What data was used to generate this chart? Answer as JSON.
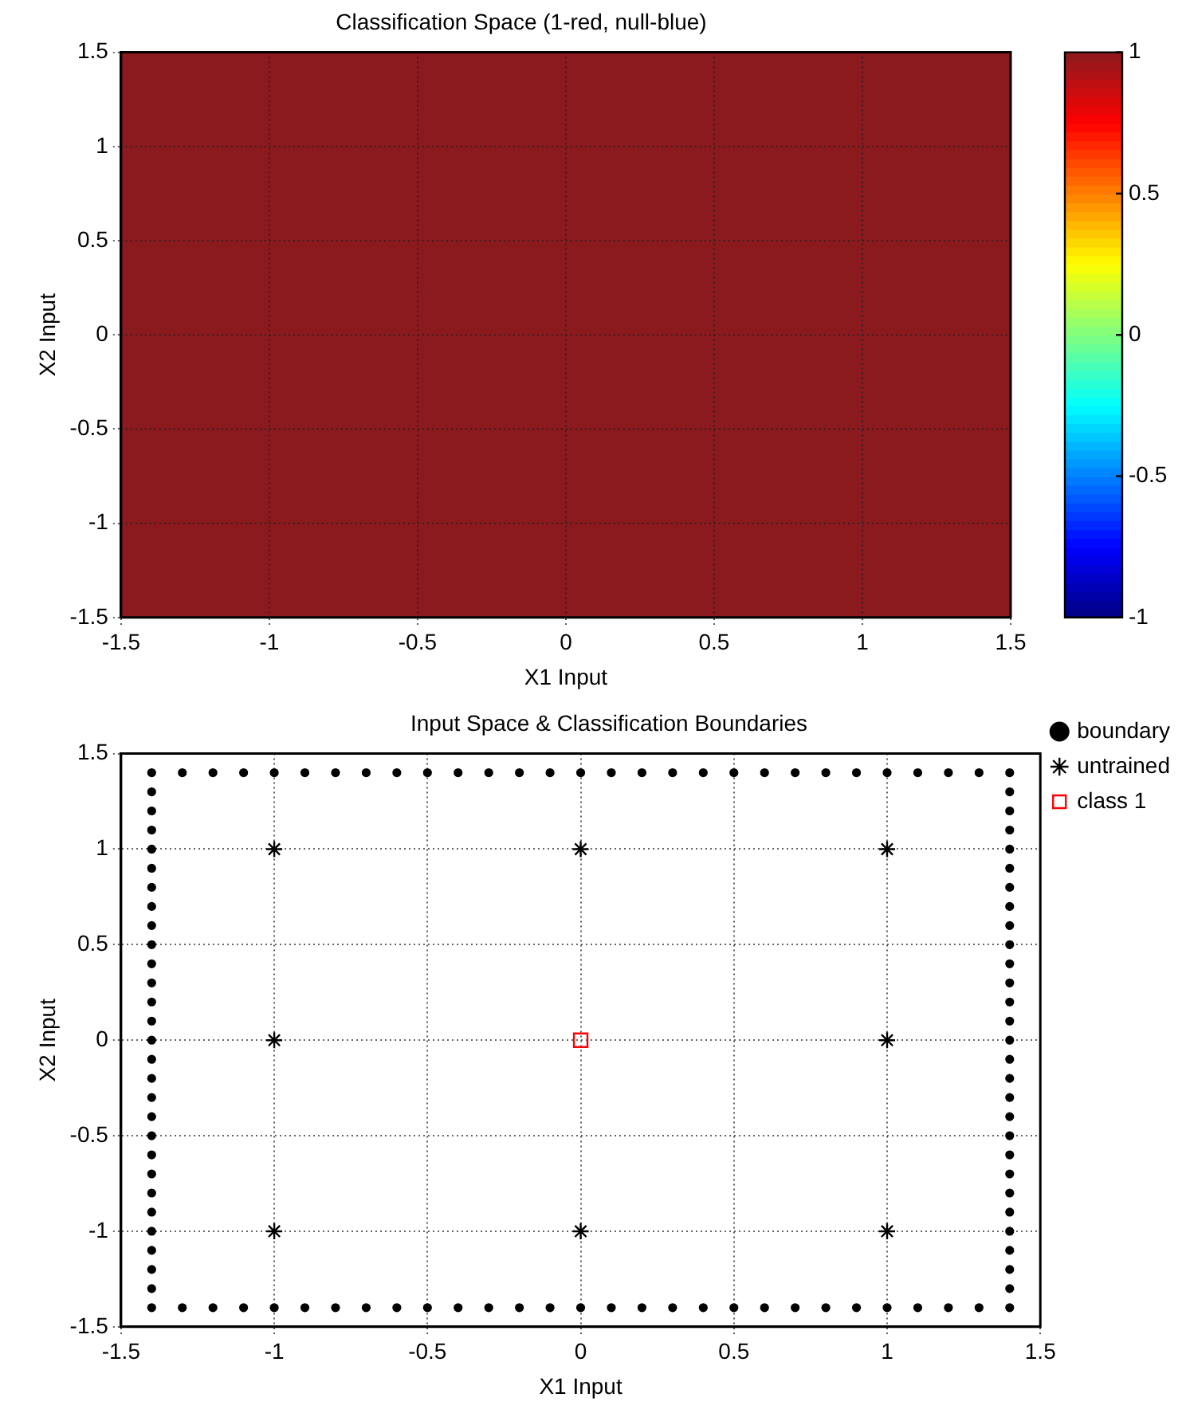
{
  "chart_data": [
    {
      "type": "heatmap",
      "title": "Classification Space (1-red, null-blue)",
      "xlabel": "X1 Input",
      "ylabel": "X2 Input",
      "cells": [
        [
          1
        ]
      ],
      "clim": [
        -1,
        1
      ],
      "cticks": [
        -1,
        -0.5,
        0,
        0.5,
        1
      ],
      "xlim": [
        -1.5,
        1.5
      ],
      "ylim": [
        -1.5,
        1.5
      ],
      "xticks": [
        -1.5,
        -1,
        -0.5,
        0,
        0.5,
        1,
        1.5
      ],
      "yticks": [
        -1.5,
        -1,
        -0.5,
        0,
        0.5,
        1,
        1.5
      ],
      "grid": true
    },
    {
      "type": "scatter",
      "title": "Input Space & Classification Boundaries",
      "xlabel": "X1 Input",
      "ylabel": "X2 Input",
      "xlim": [
        -1.5,
        1.5
      ],
      "ylim": [
        -1.5,
        1.5
      ],
      "xticks": [
        -1.5,
        -1,
        -0.5,
        0,
        0.5,
        1,
        1.5
      ],
      "yticks": [
        -1.5,
        -1,
        -0.5,
        0,
        0.5,
        1,
        1.5
      ],
      "grid": true,
      "legend": "right",
      "series": [
        {
          "name": "boundary",
          "color": "#000000",
          "marker": "circle",
          "x": [
            -1.4,
            -1.3,
            -1.2,
            -1.1,
            -1,
            -0.9,
            -0.8,
            -0.7,
            -0.6,
            -0.5,
            -0.4,
            -0.3,
            -0.2,
            -0.1,
            0,
            0.1,
            0.2,
            0.3,
            0.4,
            0.5,
            0.6,
            0.7,
            0.8,
            0.9,
            1,
            1.1,
            1.2,
            1.3,
            1.4,
            1.4,
            1.4,
            1.4,
            1.4,
            1.4,
            1.4,
            1.4,
            1.4,
            1.4,
            1.4,
            1.4,
            1.4,
            1.4,
            1.4,
            1.4,
            1.4,
            1.4,
            1.4,
            1.4,
            1.4,
            1.4,
            1.4,
            1.4,
            1.4,
            1.4,
            1.4,
            1.4,
            1.4,
            1.3,
            1.2,
            1.1,
            1,
            0.9,
            0.8,
            0.7,
            0.6,
            0.5,
            0.4,
            0.3,
            0.2,
            0.1,
            0,
            -0.1,
            -0.2,
            -0.3,
            -0.4,
            -0.5,
            -0.6,
            -0.7,
            -0.8,
            -0.9,
            -1,
            -1.1,
            -1.2,
            -1.3,
            -1.4,
            -1.4,
            -1.4,
            -1.4,
            -1.4,
            -1.4,
            -1.4,
            -1.4,
            -1.4,
            -1.4,
            -1.4,
            -1.4,
            -1.4,
            -1.4,
            -1.4,
            -1.4,
            -1.4,
            -1.4,
            -1.4,
            -1.4,
            -1.4,
            -1.4,
            -1.4,
            -1.4,
            -1.4,
            -1.4,
            -1.4,
            -1.4
          ],
          "values": [
            -1.4,
            -1.4,
            -1.4,
            -1.4,
            -1.4,
            -1.4,
            -1.4,
            -1.4,
            -1.4,
            -1.4,
            -1.4,
            -1.4,
            -1.4,
            -1.4,
            -1.4,
            -1.4,
            -1.4,
            -1.4,
            -1.4,
            -1.4,
            -1.4,
            -1.4,
            -1.4,
            -1.4,
            -1.4,
            -1.4,
            -1.4,
            -1.4,
            -1.4,
            -1.3,
            -1.2,
            -1.1,
            -1,
            -0.9,
            -0.8,
            -0.7,
            -0.6,
            -0.5,
            -0.4,
            -0.3,
            -0.2,
            -0.1,
            0,
            0.1,
            0.2,
            0.3,
            0.4,
            0.5,
            0.6,
            0.7,
            0.8,
            0.9,
            1,
            1.1,
            1.2,
            1.3,
            1.4,
            1.4,
            1.4,
            1.4,
            1.4,
            1.4,
            1.4,
            1.4,
            1.4,
            1.4,
            1.4,
            1.4,
            1.4,
            1.4,
            1.4,
            1.4,
            1.4,
            1.4,
            1.4,
            1.4,
            1.4,
            1.4,
            1.4,
            1.4,
            1.4,
            1.4,
            1.4,
            1.4,
            1.4,
            1.3,
            1.2,
            1.1,
            1,
            0.9,
            0.8,
            0.7,
            0.6,
            0.5,
            0.4,
            0.3,
            0.2,
            0.1,
            0,
            -0.1,
            -0.2,
            -0.3,
            -0.4,
            -0.5,
            -0.6,
            -0.7,
            -0.8,
            -0.9,
            -1,
            -1.1,
            -1.2,
            -1.3
          ]
        },
        {
          "name": "untrained",
          "color": "#000000",
          "marker": "cross",
          "x": [
            -1,
            0,
            1,
            -1,
            1,
            -1,
            0,
            1
          ],
          "values": [
            1,
            1,
            1,
            0,
            0,
            -1,
            -1,
            -1
          ]
        },
        {
          "name": "class 1",
          "color": "#ff0000",
          "marker": "square",
          "x": [
            0
          ],
          "values": [
            0
          ]
        }
      ]
    }
  ]
}
